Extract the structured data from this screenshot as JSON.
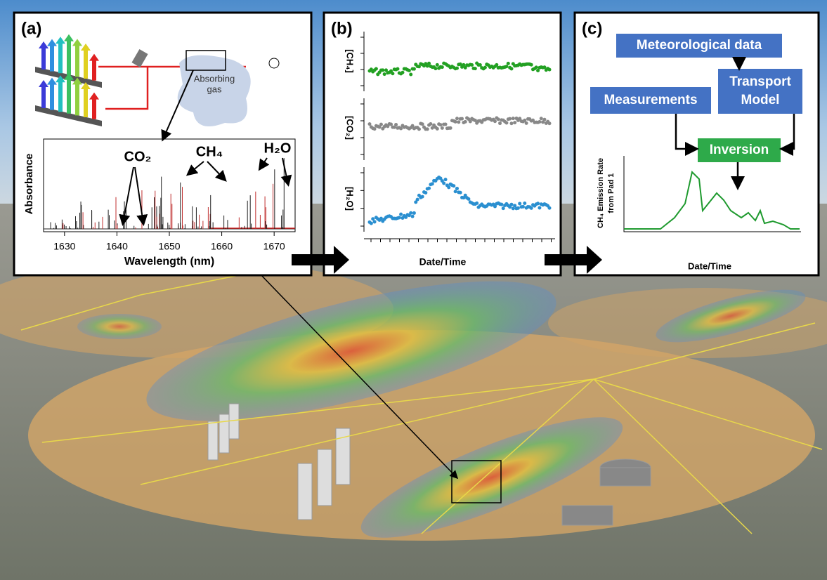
{
  "panel_a": {
    "label": "(a)",
    "gas_label": [
      "Absorbing",
      "gas"
    ],
    "y_axis_label": "Absorbance",
    "x_axis_label": "Wavelength (nm)",
    "xlim": [
      1626,
      1674
    ],
    "xticks": [
      1630,
      1640,
      1650,
      1660,
      1670
    ],
    "annotations": [
      "CO₂",
      "CH₄",
      "H₂O"
    ]
  },
  "panel_b": {
    "label": "(b)",
    "y_axis_labels": [
      "[CH₄]",
      "[CO₂]",
      "[H₂O]"
    ],
    "x_axis_label": "Date/Time"
  },
  "panel_c": {
    "label": "(c)",
    "boxes": [
      "Meteorological data",
      "Measurements",
      "Transport",
      "Model",
      "Inversion"
    ],
    "y_axis_label": [
      "CH₄ Emission Rate",
      "from Pad 1"
    ],
    "x_axis_label": "Date/Time"
  }
}
